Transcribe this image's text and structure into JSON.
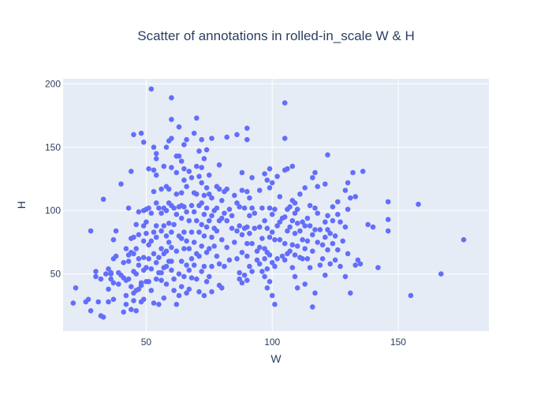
{
  "chart_data": {
    "type": "scatter",
    "title": "Scatter of annotations in rolled-in_scale W & H",
    "xlabel": "W",
    "ylabel": "H",
    "xlim": [
      17,
      186
    ],
    "ylim": [
      5,
      204
    ],
    "xticks": [
      50,
      100,
      150
    ],
    "yticks": [
      50,
      100,
      150,
      200
    ],
    "xtick_labels": [
      "50",
      "100",
      "150"
    ],
    "ytick_labels": [
      "50",
      "100",
      "150",
      "200"
    ],
    "colors": {
      "plot_background": "#e5ecf6",
      "marker": "#636efa",
      "grid": "#ffffff",
      "text": "#2a3f5f"
    },
    "grid": true,
    "legend": "none",
    "points": [
      [
        21,
        27
      ],
      [
        22,
        39
      ],
      [
        26,
        28
      ],
      [
        27,
        30
      ],
      [
        28,
        21
      ],
      [
        28,
        84
      ],
      [
        30,
        52
      ],
      [
        30,
        48
      ],
      [
        31,
        28
      ],
      [
        32,
        17
      ],
      [
        33,
        16
      ],
      [
        33,
        109
      ],
      [
        32,
        46
      ],
      [
        34,
        50
      ],
      [
        35,
        28
      ],
      [
        35,
        38
      ],
      [
        35,
        54
      ],
      [
        36,
        50
      ],
      [
        36,
        51
      ],
      [
        36,
        46
      ],
      [
        37,
        43
      ],
      [
        37,
        30
      ],
      [
        37,
        62
      ],
      [
        37,
        77
      ],
      [
        38,
        84
      ],
      [
        38,
        64
      ],
      [
        39,
        51
      ],
      [
        39,
        42
      ],
      [
        40,
        121
      ],
      [
        40,
        49
      ],
      [
        41,
        47
      ],
      [
        41,
        20
      ],
      [
        41,
        59
      ],
      [
        42,
        45
      ],
      [
        42,
        70
      ],
      [
        42,
        33
      ],
      [
        42,
        26
      ],
      [
        43,
        46
      ],
      [
        43,
        102
      ],
      [
        43,
        60
      ],
      [
        43,
        65
      ],
      [
        44,
        131
      ],
      [
        44,
        78
      ],
      [
        44,
        67
      ],
      [
        44,
        22
      ],
      [
        44,
        40
      ],
      [
        45,
        52
      ],
      [
        45,
        35
      ],
      [
        45,
        29
      ],
      [
        45,
        160
      ],
      [
        45,
        79
      ],
      [
        45,
        66
      ],
      [
        46,
        89
      ],
      [
        46,
        50
      ],
      [
        46,
        70
      ],
      [
        46,
        21
      ],
      [
        46,
        37
      ],
      [
        47,
        62
      ],
      [
        47,
        57
      ],
      [
        47,
        99
      ],
      [
        47,
        38
      ],
      [
        47,
        81
      ],
      [
        48,
        161
      ],
      [
        48,
        43
      ],
      [
        48,
        41
      ],
      [
        48,
        28
      ],
      [
        49,
        154
      ],
      [
        49,
        88
      ],
      [
        49,
        76
      ],
      [
        49,
        63
      ],
      [
        49,
        53
      ],
      [
        49,
        100
      ],
      [
        49,
        30
      ],
      [
        50,
        101
      ],
      [
        50,
        91
      ],
      [
        50,
        82
      ],
      [
        50,
        44
      ],
      [
        50,
        55
      ],
      [
        51,
        133
      ],
      [
        51,
        102
      ],
      [
        51,
        44
      ],
      [
        51,
        62
      ],
      [
        51,
        73
      ],
      [
        52,
        196
      ],
      [
        52,
        76
      ],
      [
        52,
        54
      ],
      [
        52,
        37
      ],
      [
        52,
        98
      ],
      [
        53,
        150
      ],
      [
        53,
        132
      ],
      [
        53,
        115
      ],
      [
        53,
        83
      ],
      [
        53,
        66
      ],
      [
        53,
        27
      ],
      [
        54,
        145
      ],
      [
        54,
        141
      ],
      [
        54,
        128
      ],
      [
        54,
        106
      ],
      [
        54,
        88
      ],
      [
        54,
        79
      ],
      [
        54,
        59
      ],
      [
        54,
        46
      ],
      [
        55,
        102
      ],
      [
        55,
        63
      ],
      [
        55,
        51
      ],
      [
        55,
        26
      ],
      [
        56,
        117
      ],
      [
        56,
        98
      ],
      [
        56,
        84
      ],
      [
        56,
        70
      ],
      [
        56,
        51
      ],
      [
        56,
        45
      ],
      [
        57,
        135
      ],
      [
        57,
        102
      ],
      [
        57,
        88
      ],
      [
        57,
        66
      ],
      [
        57,
        55
      ],
      [
        57,
        31
      ],
      [
        58,
        150
      ],
      [
        58,
        119
      ],
      [
        58,
        100
      ],
      [
        58,
        80
      ],
      [
        58,
        68
      ],
      [
        58,
        56
      ],
      [
        58,
        42
      ],
      [
        59,
        155
      ],
      [
        59,
        117
      ],
      [
        59,
        106
      ],
      [
        59,
        90
      ],
      [
        59,
        75
      ],
      [
        59,
        60
      ],
      [
        60,
        189
      ],
      [
        60,
        172
      ],
      [
        60,
        157
      ],
      [
        60,
        134
      ],
      [
        60,
        104
      ],
      [
        60,
        83
      ],
      [
        60,
        71
      ],
      [
        60,
        60
      ],
      [
        60,
        53
      ],
      [
        61,
        102
      ],
      [
        61,
        89
      ],
      [
        61,
        46
      ],
      [
        61,
        37
      ],
      [
        62,
        143
      ],
      [
        62,
        130
      ],
      [
        62,
        113
      ],
      [
        62,
        97
      ],
      [
        62,
        68
      ],
      [
        62,
        26
      ],
      [
        63,
        166
      ],
      [
        63,
        143
      ],
      [
        63,
        103
      ],
      [
        63,
        80
      ],
      [
        63,
        50
      ],
      [
        63,
        33
      ],
      [
        64,
        139
      ],
      [
        64,
        114
      ],
      [
        64,
        104
      ],
      [
        64,
        94
      ],
      [
        64,
        78
      ],
      [
        64,
        60
      ],
      [
        64,
        40
      ],
      [
        65,
        152
      ],
      [
        65,
        133
      ],
      [
        65,
        124
      ],
      [
        65,
        103
      ],
      [
        65,
        83
      ],
      [
        65,
        70
      ],
      [
        65,
        48
      ],
      [
        66,
        156
      ],
      [
        66,
        119
      ],
      [
        66,
        99
      ],
      [
        66,
        76
      ],
      [
        66,
        57
      ],
      [
        66,
        35
      ],
      [
        67,
        131
      ],
      [
        67,
        92
      ],
      [
        67,
        70
      ],
      [
        67,
        53
      ],
      [
        67,
        38
      ],
      [
        68,
        126
      ],
      [
        68,
        104
      ],
      [
        68,
        83
      ],
      [
        68,
        62
      ],
      [
        68,
        47
      ],
      [
        69,
        161
      ],
      [
        69,
        114
      ],
      [
        69,
        99
      ],
      [
        69,
        75
      ],
      [
        69,
        57
      ],
      [
        70,
        173
      ],
      [
        70,
        135
      ],
      [
        70,
        113
      ],
      [
        70,
        92
      ],
      [
        70,
        66
      ],
      [
        70,
        46
      ],
      [
        71,
        147
      ],
      [
        71,
        127
      ],
      [
        71,
        104
      ],
      [
        71,
        83
      ],
      [
        71,
        64
      ],
      [
        71,
        36
      ],
      [
        72,
        156
      ],
      [
        72,
        134
      ],
      [
        72,
        122
      ],
      [
        72,
        106
      ],
      [
        72,
        89
      ],
      [
        72,
        72
      ],
      [
        72,
        52
      ],
      [
        73,
        141
      ],
      [
        73,
        112
      ],
      [
        73,
        97
      ],
      [
        73,
        80
      ],
      [
        73,
        56
      ],
      [
        73,
        33
      ],
      [
        74,
        148
      ],
      [
        74,
        118
      ],
      [
        74,
        102
      ],
      [
        74,
        87
      ],
      [
        74,
        67
      ],
      [
        74,
        44
      ],
      [
        75,
        128
      ],
      [
        75,
        113
      ],
      [
        75,
        92
      ],
      [
        75,
        70
      ],
      [
        75,
        48
      ],
      [
        76,
        157
      ],
      [
        76,
        110
      ],
      [
        76,
        96
      ],
      [
        76,
        79
      ],
      [
        76,
        56
      ],
      [
        76,
        36
      ],
      [
        77,
        100
      ],
      [
        77,
        86
      ],
      [
        77,
        72
      ],
      [
        78,
        119
      ],
      [
        78,
        102
      ],
      [
        78,
        84
      ],
      [
        78,
        64
      ],
      [
        79,
        136
      ],
      [
        79,
        117
      ],
      [
        79,
        92
      ],
      [
        79,
        58
      ],
      [
        79,
        41
      ],
      [
        80,
        108
      ],
      [
        80,
        94
      ],
      [
        80,
        77
      ],
      [
        80,
        39
      ],
      [
        81,
        115
      ],
      [
        81,
        98
      ],
      [
        81,
        56
      ],
      [
        82,
        158
      ],
      [
        82,
        117
      ],
      [
        82,
        92
      ],
      [
        82,
        71
      ],
      [
        83,
        101
      ],
      [
        83,
        61
      ],
      [
        84,
        96
      ],
      [
        84,
        86
      ],
      [
        85,
        112
      ],
      [
        85,
        75
      ],
      [
        86,
        160
      ],
      [
        86,
        106
      ],
      [
        86,
        84
      ],
      [
        86,
        62
      ],
      [
        87,
        103
      ],
      [
        87,
        88
      ],
      [
        87,
        51
      ],
      [
        87,
        46
      ],
      [
        88,
        130
      ],
      [
        88,
        116
      ],
      [
        88,
        81
      ],
      [
        88,
        67
      ],
      [
        88,
        43
      ],
      [
        89,
        102
      ],
      [
        89,
        86
      ],
      [
        89,
        49
      ],
      [
        90,
        165
      ],
      [
        90,
        156
      ],
      [
        90,
        115
      ],
      [
        90,
        87
      ],
      [
        90,
        74
      ],
      [
        90,
        64
      ],
      [
        90,
        45
      ],
      [
        91,
        110
      ],
      [
        91,
        96
      ],
      [
        91,
        82
      ],
      [
        91,
        56
      ],
      [
        92,
        126
      ],
      [
        92,
        102
      ],
      [
        92,
        74
      ],
      [
        92,
        52
      ],
      [
        93,
        98
      ],
      [
        93,
        86
      ],
      [
        94,
        68
      ],
      [
        94,
        61
      ],
      [
        95,
        116
      ],
      [
        95,
        87
      ],
      [
        95,
        71
      ],
      [
        95,
        58
      ],
      [
        96,
        102
      ],
      [
        96,
        78
      ],
      [
        96,
        52
      ],
      [
        97,
        129
      ],
      [
        97,
        92
      ],
      [
        97,
        70
      ],
      [
        97,
        62
      ],
      [
        97,
        48
      ],
      [
        98,
        124
      ],
      [
        98,
        86
      ],
      [
        98,
        67
      ],
      [
        98,
        54
      ],
      [
        98,
        39
      ],
      [
        99,
        133
      ],
      [
        99,
        118
      ],
      [
        99,
        102
      ],
      [
        99,
        79
      ],
      [
        99,
        65
      ],
      [
        99,
        44
      ],
      [
        100,
        122
      ],
      [
        100,
        97
      ],
      [
        100,
        83
      ],
      [
        100,
        59
      ],
      [
        100,
        33
      ],
      [
        101,
        101
      ],
      [
        101,
        77
      ],
      [
        101,
        56
      ],
      [
        101,
        26
      ],
      [
        102,
        127
      ],
      [
        102,
        88
      ],
      [
        102,
        62
      ],
      [
        103,
        111
      ],
      [
        103,
        91
      ],
      [
        103,
        77
      ],
      [
        104,
        94
      ],
      [
        104,
        64
      ],
      [
        105,
        185
      ],
      [
        105,
        157
      ],
      [
        105,
        132
      ],
      [
        105,
        95
      ],
      [
        105,
        74
      ],
      [
        105,
        61
      ],
      [
        106,
        133
      ],
      [
        106,
        101
      ],
      [
        106,
        84
      ],
      [
        106,
        66
      ],
      [
        107,
        103
      ],
      [
        107,
        87
      ],
      [
        107,
        68
      ],
      [
        108,
        135
      ],
      [
        108,
        108
      ],
      [
        108,
        92
      ],
      [
        108,
        73
      ],
      [
        108,
        55
      ],
      [
        109,
        106
      ],
      [
        109,
        98
      ],
      [
        109,
        82
      ],
      [
        109,
        65
      ],
      [
        109,
        48
      ],
      [
        110,
        101
      ],
      [
        110,
        90
      ],
      [
        110,
        72
      ],
      [
        110,
        39
      ],
      [
        111,
        113
      ],
      [
        111,
        84
      ],
      [
        111,
        63
      ],
      [
        112,
        91
      ],
      [
        112,
        77
      ],
      [
        112,
        62
      ],
      [
        113,
        118
      ],
      [
        113,
        88
      ],
      [
        113,
        70
      ],
      [
        113,
        42
      ],
      [
        114,
        94
      ],
      [
        114,
        76
      ],
      [
        114,
        62
      ],
      [
        115,
        104
      ],
      [
        115,
        88
      ],
      [
        115,
        55
      ],
      [
        116,
        126
      ],
      [
        116,
        81
      ],
      [
        116,
        68
      ],
      [
        116,
        24
      ],
      [
        117,
        130
      ],
      [
        117,
        102
      ],
      [
        117,
        85
      ],
      [
        117,
        35
      ],
      [
        118,
        119
      ],
      [
        118,
        98
      ],
      [
        118,
        75
      ],
      [
        119,
        85
      ],
      [
        119,
        57
      ],
      [
        120,
        73
      ],
      [
        120,
        62
      ],
      [
        121,
        121
      ],
      [
        121,
        91
      ],
      [
        121,
        79
      ],
      [
        121,
        49
      ],
      [
        122,
        144
      ],
      [
        122,
        96
      ],
      [
        122,
        85
      ],
      [
        122,
        69
      ],
      [
        123,
        82
      ],
      [
        123,
        58
      ],
      [
        124,
        103
      ],
      [
        124,
        92
      ],
      [
        124,
        74
      ],
      [
        125,
        80
      ],
      [
        125,
        61
      ],
      [
        126,
        107
      ],
      [
        126,
        97
      ],
      [
        126,
        69
      ],
      [
        127,
        91
      ],
      [
        127,
        56
      ],
      [
        128,
        76
      ],
      [
        129,
        116
      ],
      [
        129,
        87
      ],
      [
        129,
        48
      ],
      [
        130,
        122
      ],
      [
        130,
        101
      ],
      [
        130,
        66
      ],
      [
        131,
        110
      ],
      [
        131,
        35
      ],
      [
        132,
        130
      ],
      [
        133,
        111
      ],
      [
        133,
        57
      ],
      [
        134,
        61
      ],
      [
        135,
        58
      ],
      [
        136,
        131
      ],
      [
        138,
        89
      ],
      [
        140,
        87
      ],
      [
        142,
        55
      ],
      [
        146,
        107
      ],
      [
        146,
        93
      ],
      [
        146,
        84
      ],
      [
        155,
        33
      ],
      [
        158,
        105
      ],
      [
        167,
        50
      ],
      [
        176,
        77
      ]
    ]
  }
}
